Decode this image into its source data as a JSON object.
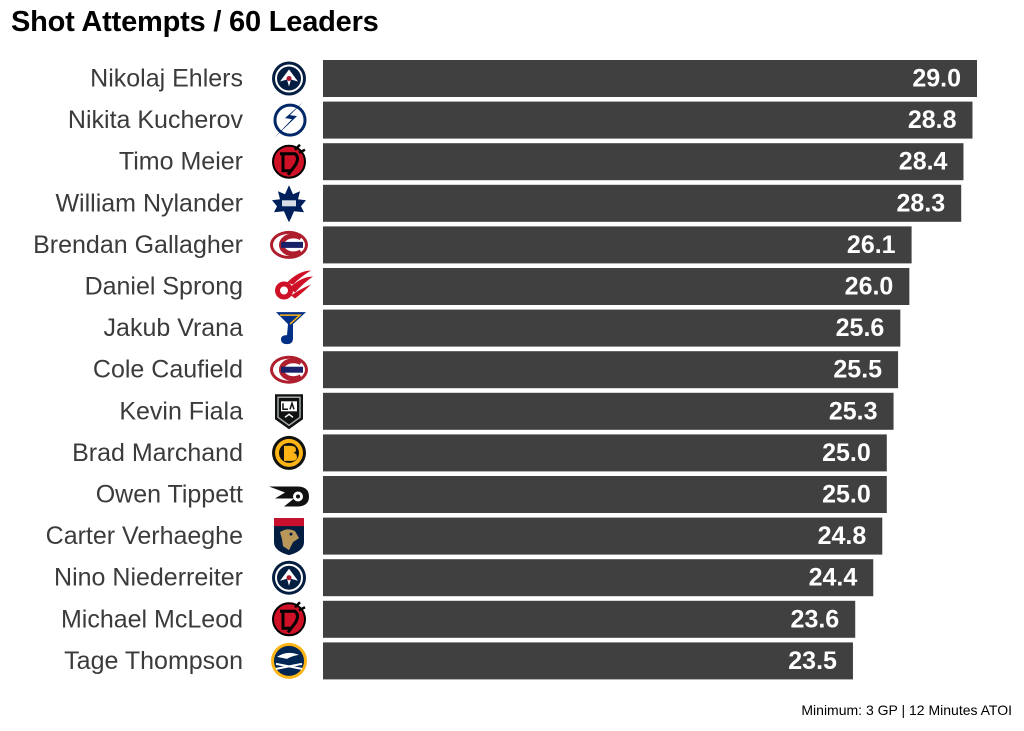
{
  "chart_data": {
    "type": "bar",
    "orientation": "horizontal",
    "title": "Shot Attempts / 60 Leaders",
    "caption": "Minimum: 3 GP | 12 Minutes ATOI",
    "xlim": [
      0,
      29.0
    ],
    "grid": false,
    "bar_color": "#404040",
    "value_label_color": "#ffffff",
    "categories": [
      "Nikolaj Ehlers",
      "Nikita Kucherov",
      "Timo Meier",
      "William Nylander",
      "Brendan Gallagher",
      "Daniel Sprong",
      "Jakub Vrana",
      "Cole Caufield",
      "Kevin Fiala",
      "Brad Marchand",
      "Owen Tippett",
      "Carter Verhaeghe",
      "Nino Niederreiter",
      "Michael McLeod",
      "Tage Thompson"
    ],
    "values": [
      29.0,
      28.8,
      28.4,
      28.3,
      26.1,
      26.0,
      25.6,
      25.5,
      25.3,
      25.0,
      25.0,
      24.8,
      24.4,
      23.6,
      23.5
    ],
    "value_labels": [
      "29.0",
      "28.8",
      "28.4",
      "28.3",
      "26.1",
      "26.0",
      "25.6",
      "25.5",
      "25.3",
      "25.0",
      "25.0",
      "24.8",
      "24.4",
      "23.6",
      "23.5"
    ],
    "team_logos": [
      {
        "icon": "winnipeg-jets-logo-icon",
        "colors": [
          "#041e42",
          "#ffffff",
          "#ac162c"
        ]
      },
      {
        "icon": "tampa-bay-lightning-logo-icon",
        "colors": [
          "#002868",
          "#ffffff"
        ]
      },
      {
        "icon": "new-jersey-devils-logo-icon",
        "colors": [
          "#ce1126",
          "#000000"
        ]
      },
      {
        "icon": "toronto-maple-leafs-logo-icon",
        "colors": [
          "#00205b",
          "#ffffff"
        ]
      },
      {
        "icon": "montreal-canadiens-logo-icon",
        "colors": [
          "#af1e2d",
          "#192168",
          "#ffffff"
        ]
      },
      {
        "icon": "detroit-red-wings-logo-icon",
        "colors": [
          "#ce1126",
          "#ffffff"
        ]
      },
      {
        "icon": "st-louis-blues-logo-icon",
        "colors": [
          "#002f87",
          "#fcb514"
        ]
      },
      {
        "icon": "montreal-canadiens-logo-icon",
        "colors": [
          "#af1e2d",
          "#192168",
          "#ffffff"
        ]
      },
      {
        "icon": "los-angeles-kings-logo-icon",
        "colors": [
          "#111111",
          "#a2aaad",
          "#ffffff"
        ]
      },
      {
        "icon": "boston-bruins-logo-icon",
        "colors": [
          "#111111",
          "#fcb514"
        ]
      },
      {
        "icon": "philadelphia-flyers-logo-icon",
        "colors": [
          "#111111",
          "#ffffff"
        ]
      },
      {
        "icon": "florida-panthers-logo-icon",
        "colors": [
          "#c8102e",
          "#041e42",
          "#b9975b"
        ]
      },
      {
        "icon": "winnipeg-jets-logo-icon",
        "colors": [
          "#041e42",
          "#ffffff",
          "#ac162c"
        ]
      },
      {
        "icon": "new-jersey-devils-logo-icon",
        "colors": [
          "#ce1126",
          "#000000"
        ]
      },
      {
        "icon": "buffalo-sabres-logo-icon",
        "colors": [
          "#002654",
          "#fcb514",
          "#ffffff"
        ]
      }
    ]
  }
}
